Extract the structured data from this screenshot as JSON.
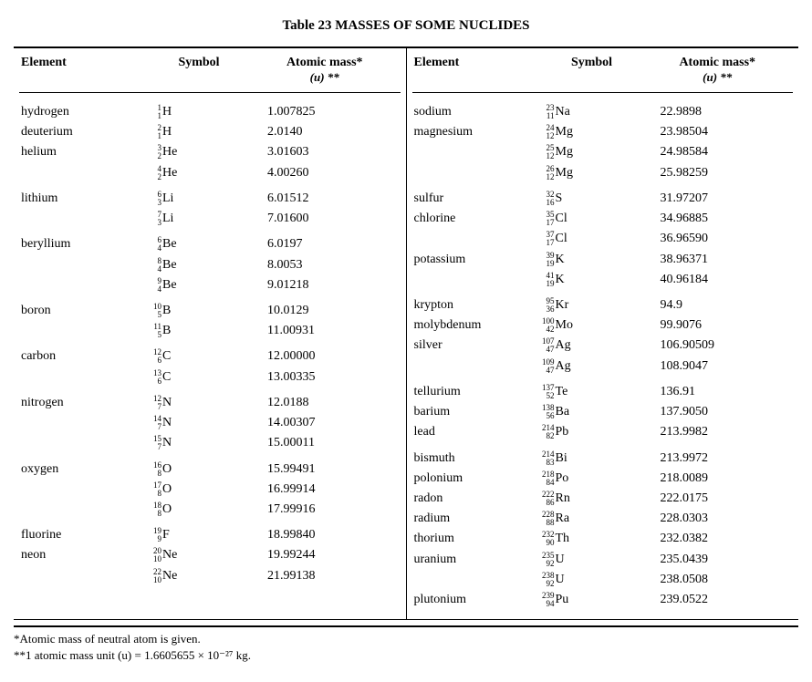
{
  "title": "Table 23   MASSES OF SOME NUCLIDES",
  "headers": {
    "element": "Element",
    "symbol": "Symbol",
    "mass_l1": "Atomic mass*",
    "mass_l2": "(u) **"
  },
  "left": [
    {
      "element": "hydrogen",
      "A": "1",
      "Z": "1",
      "sym": "H",
      "mass": "1.007825",
      "gap": false
    },
    {
      "element": "deuterium",
      "A": "2",
      "Z": "1",
      "sym": "H",
      "mass": "2.0140",
      "gap": false
    },
    {
      "element": "helium",
      "A": "3",
      "Z": "2",
      "sym": "He",
      "mass": "3.01603",
      "gap": false
    },
    {
      "element": "",
      "A": "4",
      "Z": "2",
      "sym": "He",
      "mass": "4.00260",
      "gap": false
    },
    {
      "element": "lithium",
      "A": "6",
      "Z": "3",
      "sym": "Li",
      "mass": "6.01512",
      "gap": true
    },
    {
      "element": "",
      "A": "7",
      "Z": "3",
      "sym": "Li",
      "mass": "7.01600",
      "gap": false
    },
    {
      "element": "beryllium",
      "A": "6",
      "Z": "4",
      "sym": "Be",
      "mass": "6.0197",
      "gap": true
    },
    {
      "element": "",
      "A": "8",
      "Z": "4",
      "sym": "Be",
      "mass": "8.0053",
      "gap": false
    },
    {
      "element": "",
      "A": "9",
      "Z": "4",
      "sym": "Be",
      "mass": "9.01218",
      "gap": false
    },
    {
      "element": "boron",
      "A": "10",
      "Z": "5",
      "sym": "B",
      "mass": "10.0129",
      "gap": true
    },
    {
      "element": "",
      "A": "11",
      "Z": "5",
      "sym": "B",
      "mass": "11.00931",
      "gap": false
    },
    {
      "element": "carbon",
      "A": "12",
      "Z": "6",
      "sym": "C",
      "mass": "12.00000",
      "gap": true
    },
    {
      "element": "",
      "A": "13",
      "Z": "6",
      "sym": "C",
      "mass": "13.00335",
      "gap": false
    },
    {
      "element": "nitrogen",
      "A": "12",
      "Z": "7",
      "sym": "N",
      "mass": "12.0188",
      "gap": true
    },
    {
      "element": "",
      "A": "14",
      "Z": "7",
      "sym": "N",
      "mass": "14.00307",
      "gap": false
    },
    {
      "element": "",
      "A": "15",
      "Z": "7",
      "sym": "N",
      "mass": "15.00011",
      "gap": false
    },
    {
      "element": "oxygen",
      "A": "16",
      "Z": "8",
      "sym": "O",
      "mass": "15.99491",
      "gap": true
    },
    {
      "element": "",
      "A": "17",
      "Z": "8",
      "sym": "O",
      "mass": "16.99914",
      "gap": false
    },
    {
      "element": "",
      "A": "18",
      "Z": "8",
      "sym": "O",
      "mass": "17.99916",
      "gap": false
    },
    {
      "element": "fluorine",
      "A": "19",
      "Z": "9",
      "sym": "F",
      "mass": "18.99840",
      "gap": true
    },
    {
      "element": "neon",
      "A": "20",
      "Z": "10",
      "sym": "Ne",
      "mass": "19.99244",
      "gap": false
    },
    {
      "element": "",
      "A": "22",
      "Z": "10",
      "sym": "Ne",
      "mass": "21.99138",
      "gap": false
    }
  ],
  "right": [
    {
      "element": "sodium",
      "A": "23",
      "Z": "11",
      "sym": "Na",
      "mass": "22.9898",
      "gap": false
    },
    {
      "element": "magnesium",
      "A": "24",
      "Z": "12",
      "sym": "Mg",
      "mass": "23.98504",
      "gap": false
    },
    {
      "element": "",
      "A": "25",
      "Z": "12",
      "sym": "Mg",
      "mass": "24.98584",
      "gap": false
    },
    {
      "element": "",
      "A": "26",
      "Z": "12",
      "sym": "Mg",
      "mass": "25.98259",
      "gap": false
    },
    {
      "element": "sulfur",
      "A": "32",
      "Z": "16",
      "sym": "S",
      "mass": "31.97207",
      "gap": true
    },
    {
      "element": "chlorine",
      "A": "35",
      "Z": "17",
      "sym": "Cl",
      "mass": "34.96885",
      "gap": false
    },
    {
      "element": "",
      "A": "37",
      "Z": "17",
      "sym": "Cl",
      "mass": "36.96590",
      "gap": false
    },
    {
      "element": "potassium",
      "A": "39",
      "Z": "19",
      "sym": "K",
      "mass": "38.96371",
      "gap": false
    },
    {
      "element": "",
      "A": "41",
      "Z": "19",
      "sym": "K",
      "mass": "40.96184",
      "gap": false
    },
    {
      "element": "krypton",
      "A": "95",
      "Z": "36",
      "sym": "Kr",
      "mass": "94.9",
      "gap": true
    },
    {
      "element": "molybdenum",
      "A": "100",
      "Z": "42",
      "sym": "Mo",
      "mass": "99.9076",
      "gap": false
    },
    {
      "element": "silver",
      "A": "107",
      "Z": "47",
      "sym": "Ag",
      "mass": "106.90509",
      "gap": false
    },
    {
      "element": "",
      "A": "109",
      "Z": "47",
      "sym": "Ag",
      "mass": "108.9047",
      "gap": false
    },
    {
      "element": "tellurium",
      "A": "137",
      "Z": "52",
      "sym": "Te",
      "mass": "136.91",
      "gap": true
    },
    {
      "element": "barium",
      "A": "138",
      "Z": "56",
      "sym": "Ba",
      "mass": "137.9050",
      "gap": false
    },
    {
      "element": "lead",
      "A": "214",
      "Z": "82",
      "sym": "Pb",
      "mass": "213.9982",
      "gap": false
    },
    {
      "element": "bismuth",
      "A": "214",
      "Z": "83",
      "sym": "Bi",
      "mass": "213.9972",
      "gap": true
    },
    {
      "element": "polonium",
      "A": "218",
      "Z": "84",
      "sym": "Po",
      "mass": "218.0089",
      "gap": false
    },
    {
      "element": "radon",
      "A": "222",
      "Z": "86",
      "sym": "Rn",
      "mass": "222.0175",
      "gap": false
    },
    {
      "element": "radium",
      "A": "228",
      "Z": "88",
      "sym": "Ra",
      "mass": "228.0303",
      "gap": false
    },
    {
      "element": "thorium",
      "A": "232",
      "Z": "90",
      "sym": "Th",
      "mass": "232.0382",
      "gap": false
    },
    {
      "element": "uranium",
      "A": "235",
      "Z": "92",
      "sym": "U",
      "mass": "235.0439",
      "gap": false
    },
    {
      "element": "",
      "A": "238",
      "Z": "92",
      "sym": "U",
      "mass": "238.0508",
      "gap": false
    },
    {
      "element": "plutonium",
      "A": "239",
      "Z": "94",
      "sym": "Pu",
      "mass": "239.0522",
      "gap": false
    }
  ],
  "footnotes": {
    "f1": "*Atomic mass of neutral atom is given.",
    "f2": "**1 atomic mass unit (u) = 1.6605655 × 10⁻²⁷ kg."
  }
}
